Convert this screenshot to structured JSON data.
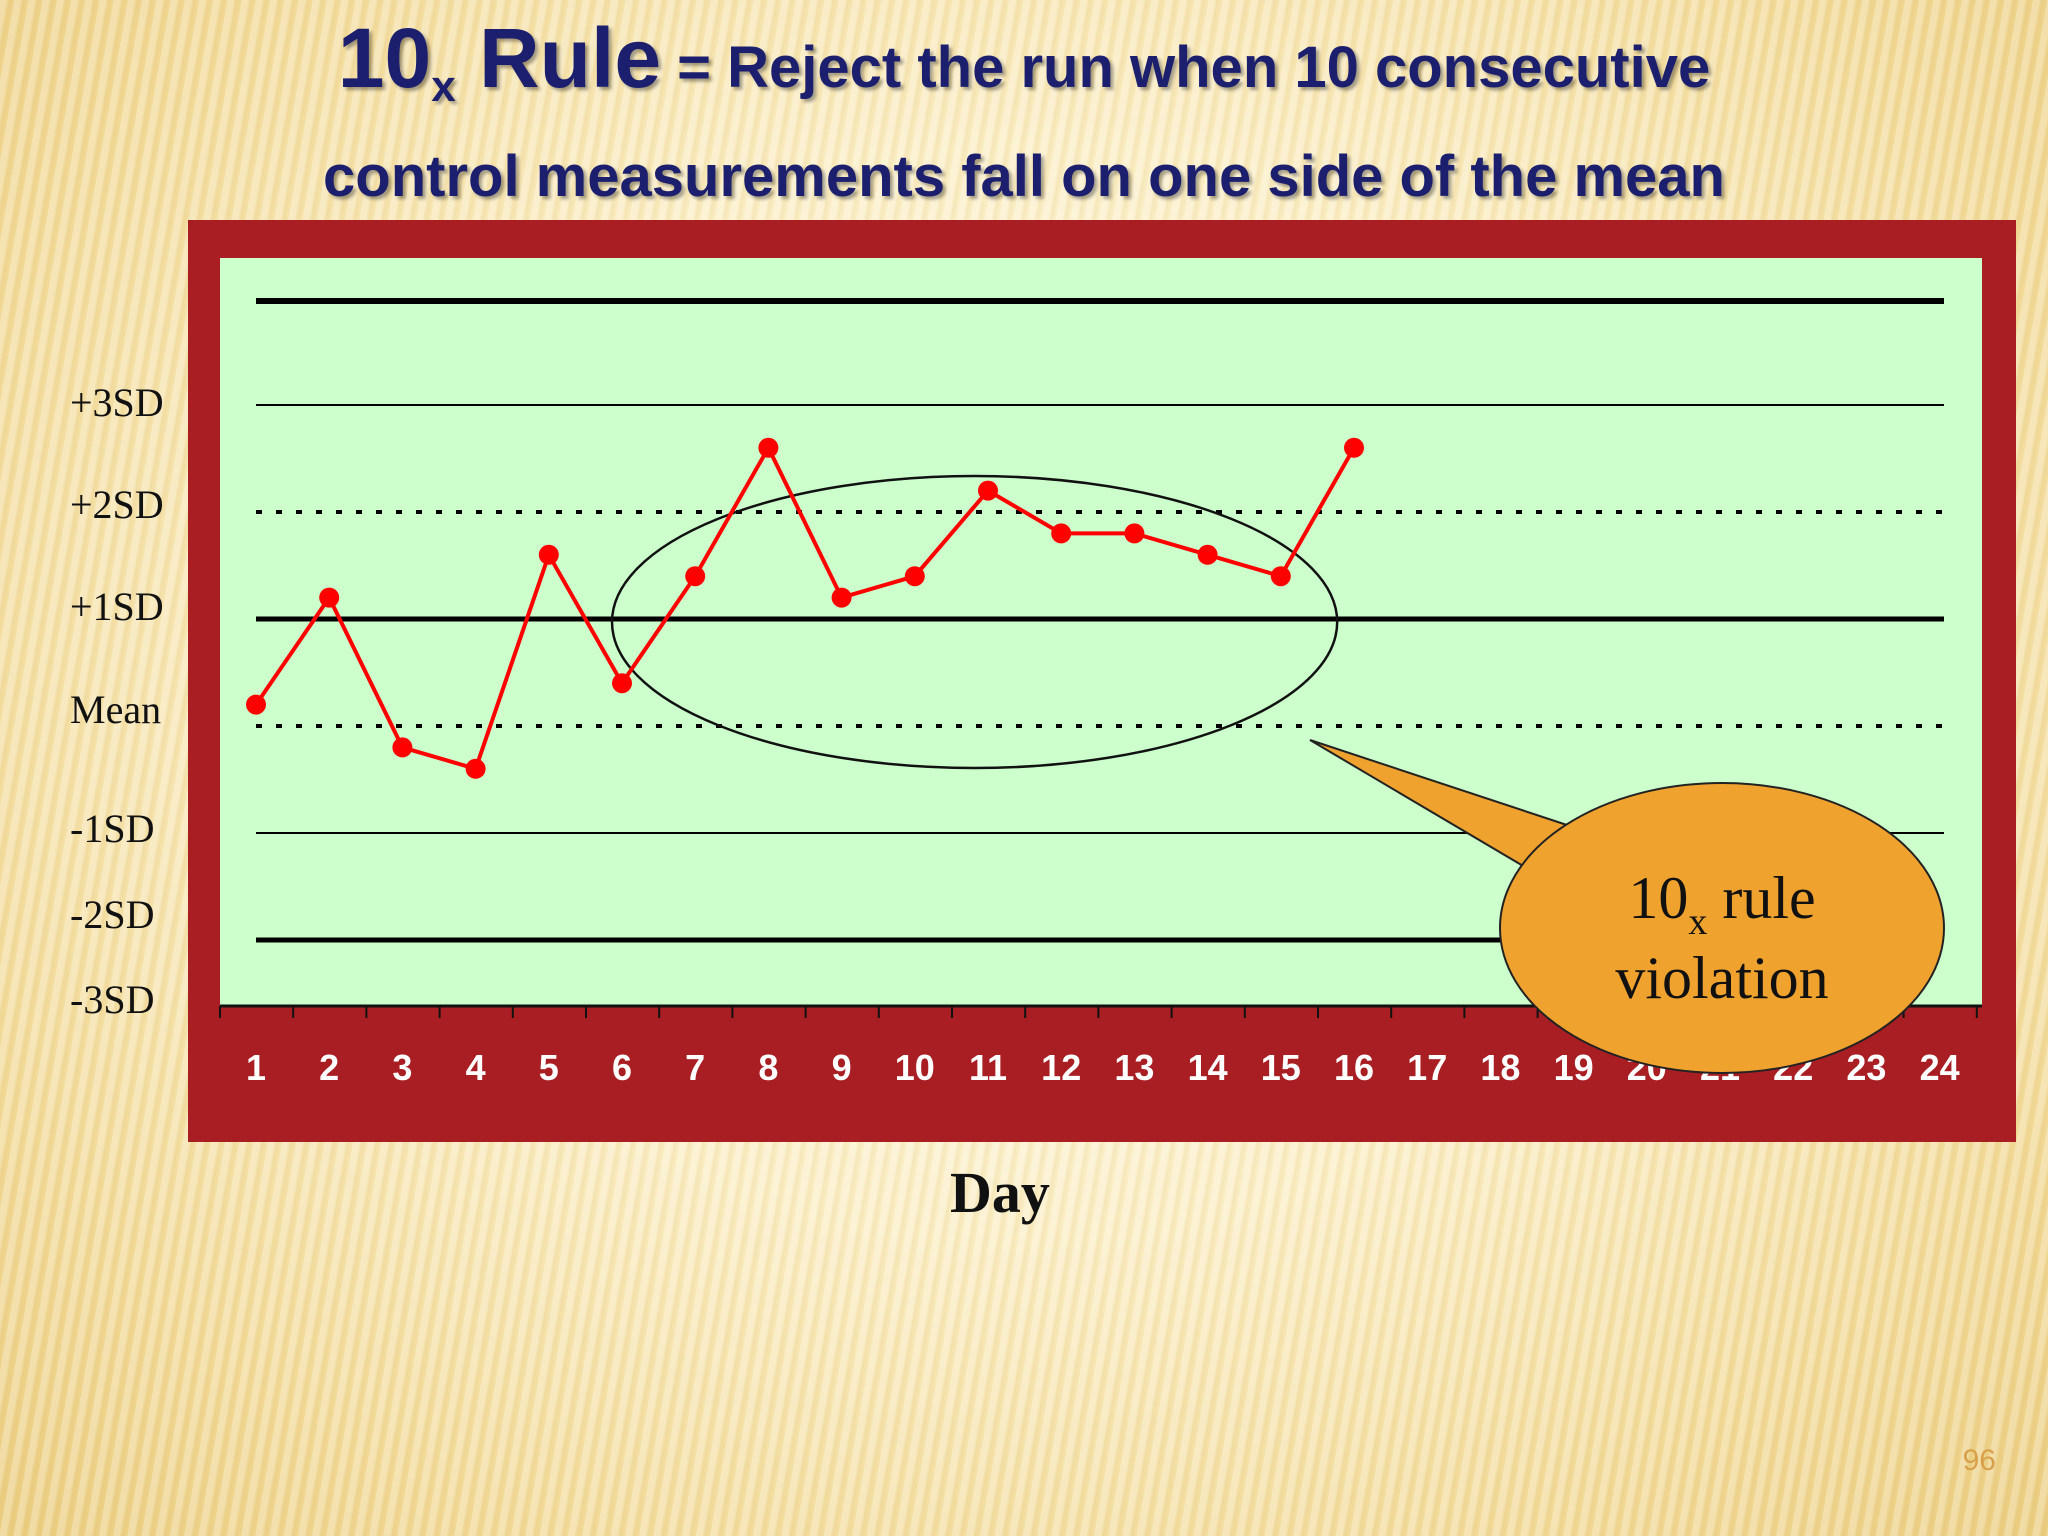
{
  "slide": {
    "title_rule": "10",
    "title_rule_sub": "x",
    "title_rule_word": "Rule",
    "title_rest_line1": "= Reject the run when 10 consecutive",
    "title_line2": "control measurements fall on one side of the mean",
    "slide_number": "96"
  },
  "colors": {
    "frame": "#a91e23",
    "plot_bg": "#ccffcc",
    "series": "#ff0000",
    "title": "#1b1f6e",
    "callout": "#f0a22e",
    "tick_label": "#ffffff"
  },
  "chart_data": {
    "type": "line",
    "title": "",
    "xlabel": "Day",
    "ylabel": "",
    "x": [
      1,
      2,
      3,
      4,
      5,
      6,
      7,
      8,
      9,
      10,
      11,
      12,
      13,
      14,
      15,
      16,
      17,
      18,
      19,
      20,
      21,
      22,
      23,
      24
    ],
    "ylim": [
      -3,
      3.9
    ],
    "y_levels": [
      {
        "label": "+3SD",
        "value": 3,
        "style": "solid-thin"
      },
      {
        "label": "+2SD",
        "value": 2,
        "style": "dotted"
      },
      {
        "label": "+1SD",
        "value": 1,
        "style": "solid-thick"
      },
      {
        "label": "Mean",
        "value": 0,
        "style": "dotted"
      },
      {
        "label": "-1SD",
        "value": -1,
        "style": "solid-thin"
      },
      {
        "label": "-2SD",
        "value": -2,
        "style": "solid-thick"
      },
      {
        "label": "-3SD",
        "value": -3,
        "style": "none"
      }
    ],
    "top_line_value": 4,
    "series": [
      {
        "x": [
          1,
          2,
          3,
          4,
          5,
          6,
          7,
          8,
          9,
          10,
          11,
          12,
          13,
          14,
          15,
          16
        ],
        "values": [
          0.2,
          1.2,
          -0.2,
          -0.4,
          1.6,
          0.4,
          1.4,
          2.6,
          1.2,
          1.4,
          2.2,
          1.8,
          1.8,
          1.6,
          1.4,
          2.6
        ]
      }
    ],
    "annotations": {
      "ellipse_days": [
        6,
        17
      ],
      "callout_text": "10",
      "callout_sub": "x",
      "callout_text_rest": " rule",
      "callout_line2": "violation"
    },
    "grid": false,
    "legend": "none"
  }
}
